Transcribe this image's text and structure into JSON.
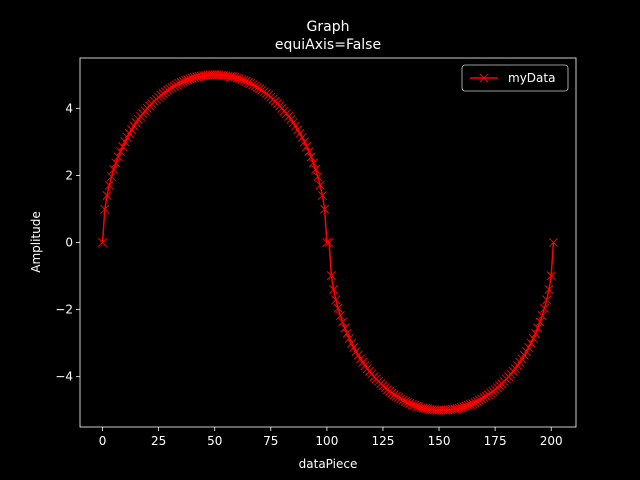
{
  "chart_data": {
    "type": "line",
    "title": "Graph",
    "subtitle": "equiAxis=False",
    "x_label": "dataPiece",
    "y_label": "Amplitude",
    "x": [
      0,
      1,
      2,
      3,
      4,
      5,
      6,
      7,
      8,
      9,
      10,
      11,
      12,
      13,
      14,
      15,
      16,
      17,
      18,
      19,
      20,
      21,
      22,
      23,
      24,
      25,
      26,
      27,
      28,
      29,
      30,
      31,
      32,
      33,
      34,
      35,
      36,
      37,
      38,
      39,
      40,
      41,
      42,
      43,
      44,
      45,
      46,
      47,
      48,
      49,
      50,
      51,
      52,
      53,
      54,
      55,
      56,
      57,
      58,
      59,
      60,
      61,
      62,
      63,
      64,
      65,
      66,
      67,
      68,
      69,
      70,
      71,
      72,
      73,
      74,
      75,
      76,
      77,
      78,
      79,
      80,
      81,
      82,
      83,
      84,
      85,
      86,
      87,
      88,
      89,
      90,
      91,
      92,
      93,
      94,
      95,
      96,
      97,
      98,
      99,
      100,
      101,
      102,
      103,
      104,
      105,
      106,
      107,
      108,
      109,
      110,
      111,
      112,
      113,
      114,
      115,
      116,
      117,
      118,
      119,
      120,
      121,
      122,
      123,
      124,
      125,
      126,
      127,
      128,
      129,
      130,
      131,
      132,
      133,
      134,
      135,
      136,
      137,
      138,
      139,
      140,
      141,
      142,
      143,
      144,
      145,
      146,
      147,
      148,
      149,
      150,
      151,
      152,
      153,
      154,
      155,
      156,
      157,
      158,
      159,
      160,
      161,
      162,
      163,
      164,
      165,
      166,
      167,
      168,
      169,
      170,
      171,
      172,
      173,
      174,
      175,
      176,
      177,
      178,
      179,
      180,
      181,
      182,
      183,
      184,
      185,
      186,
      187,
      188,
      189,
      190,
      191,
      192,
      193,
      194,
      195,
      196,
      197,
      198,
      199,
      200,
      201
    ],
    "series": [
      {
        "name": "myData",
        "color": "#ff0000",
        "marker": "x",
        "values": [
          0,
          0.99,
          1.4,
          1.71,
          1.96,
          2.18,
          2.37,
          2.55,
          2.71,
          2.86,
          3,
          3.13,
          3.25,
          3.36,
          3.47,
          3.57,
          3.67,
          3.76,
          3.84,
          3.92,
          4,
          4.07,
          4.14,
          4.21,
          4.27,
          4.33,
          4.39,
          4.44,
          4.49,
          4.54,
          4.58,
          4.62,
          4.66,
          4.7,
          4.74,
          4.77,
          4.8,
          4.83,
          4.85,
          4.88,
          4.9,
          4.92,
          4.94,
          4.95,
          4.96,
          4.97,
          4.98,
          4.99,
          5,
          5,
          5,
          5,
          5,
          4.99,
          4.98,
          4.97,
          4.96,
          4.95,
          4.94,
          4.92,
          4.9,
          4.88,
          4.85,
          4.83,
          4.8,
          4.77,
          4.74,
          4.7,
          4.66,
          4.62,
          4.58,
          4.54,
          4.49,
          4.44,
          4.39,
          4.33,
          4.27,
          4.21,
          4.14,
          4.07,
          4,
          3.92,
          3.84,
          3.76,
          3.67,
          3.57,
          3.47,
          3.36,
          3.25,
          3.13,
          3,
          2.86,
          2.71,
          2.55,
          2.37,
          2.18,
          1.96,
          1.71,
          1.4,
          0.99,
          0,
          0,
          -0.99,
          -1.4,
          -1.71,
          -1.96,
          -2.18,
          -2.37,
          -2.55,
          -2.71,
          -2.86,
          -3,
          -3.13,
          -3.25,
          -3.36,
          -3.47,
          -3.57,
          -3.67,
          -3.76,
          -3.84,
          -3.92,
          -4,
          -4.07,
          -4.14,
          -4.21,
          -4.27,
          -4.33,
          -4.39,
          -4.44,
          -4.49,
          -4.54,
          -4.58,
          -4.62,
          -4.66,
          -4.7,
          -4.74,
          -4.77,
          -4.8,
          -4.83,
          -4.85,
          -4.88,
          -4.9,
          -4.92,
          -4.94,
          -4.95,
          -4.96,
          -4.97,
          -4.98,
          -4.99,
          -5,
          -5,
          -5,
          -5,
          -5,
          -4.99,
          -4.98,
          -4.97,
          -4.96,
          -4.95,
          -4.94,
          -4.92,
          -4.9,
          -4.88,
          -4.85,
          -4.83,
          -4.8,
          -4.77,
          -4.74,
          -4.7,
          -4.66,
          -4.62,
          -4.58,
          -4.54,
          -4.49,
          -4.44,
          -4.39,
          -4.33,
          -4.27,
          -4.21,
          -4.14,
          -4.07,
          -4,
          -3.92,
          -3.84,
          -3.76,
          -3.67,
          -3.57,
          -3.47,
          -3.36,
          -3.25,
          -3.13,
          -3,
          -2.86,
          -2.71,
          -2.55,
          -2.37,
          -2.18,
          -1.96,
          -1.71,
          -1.4,
          -0.99,
          0
        ]
      }
    ],
    "xlim": [
      -10.05,
      211.05
    ],
    "ylim": [
      -5.5,
      5.5
    ],
    "xticks": [
      0,
      25,
      50,
      75,
      100,
      125,
      150,
      175,
      200
    ],
    "yticks": [
      {
        "value": -4,
        "label": "−4"
      },
      {
        "value": -2,
        "label": "−2"
      },
      0,
      2,
      4
    ],
    "grid": false,
    "legend_position": "upper right"
  }
}
